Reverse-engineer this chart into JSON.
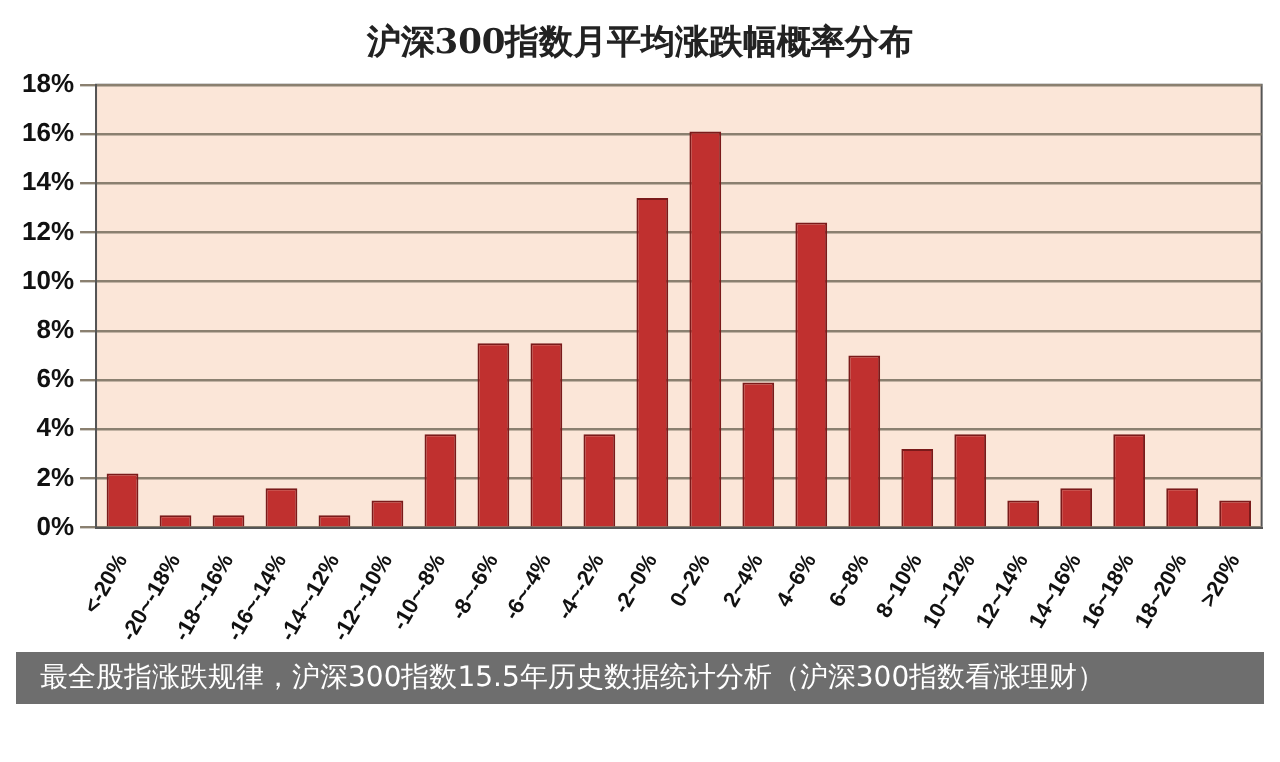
{
  "chart_data": {
    "type": "bar",
    "title": "沪深300指数月平均涨跌幅概率分布",
    "categories": [
      "<-20%",
      "-20~-18%",
      "-18~-16%",
      "-16~-14%",
      "-14~-12%",
      "-12~-10%",
      "-10~-8%",
      "-8~-6%",
      "-6~-4%",
      "-4~-2%",
      "-2~0%",
      "0~2%",
      "2~4%",
      "4~6%",
      "6~8%",
      "8~10%",
      "10~12%",
      "12~14%",
      "14~16%",
      "16~18%",
      "18~20%",
      ">20%"
    ],
    "values": [
      2.2,
      0.5,
      0.5,
      1.6,
      0.5,
      1.1,
      3.8,
      7.5,
      7.5,
      3.8,
      13.4,
      16.1,
      5.9,
      12.4,
      7.0,
      3.2,
      3.8,
      1.1,
      1.6,
      3.8,
      1.6,
      1.1
    ],
    "color": "#c0302f",
    "ylim": [
      0,
      18
    ],
    "yticks": [
      {
        "value": 0,
        "label": "0%"
      },
      {
        "value": 2,
        "label": "2%"
      },
      {
        "value": 4,
        "label": "4%"
      },
      {
        "value": 6,
        "label": "6%"
      },
      {
        "value": 8,
        "label": "8%"
      },
      {
        "value": 10,
        "label": "10%"
      },
      {
        "value": 12,
        "label": "12%"
      },
      {
        "value": 14,
        "label": "14%"
      },
      {
        "value": 16,
        "label": "16%"
      },
      {
        "value": 18,
        "label": "18%"
      }
    ],
    "grid": "y",
    "legend": false,
    "annotations": [
      "最全股指涨跌规律，沪深300指数15.5年历史数据统计分析（沪深300指数看涨理财）"
    ]
  }
}
